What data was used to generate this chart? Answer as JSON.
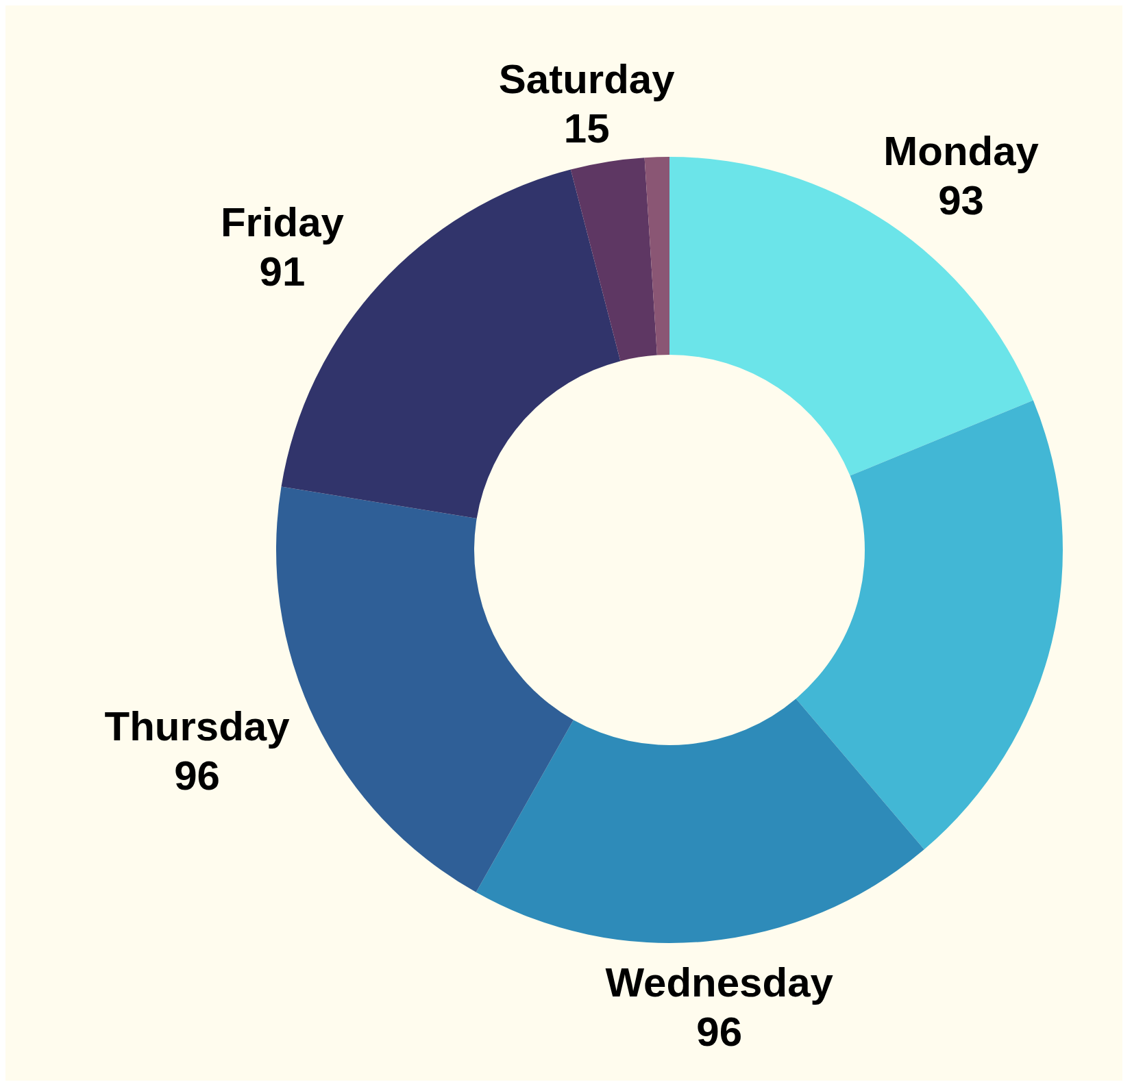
{
  "chart_data": {
    "type": "donut",
    "categories": [
      "Monday",
      null,
      "Wednesday",
      "Thursday",
      "Friday",
      "Saturday",
      null
    ],
    "values": [
      93,
      99,
      96,
      96,
      91,
      15,
      5
    ],
    "colors": [
      "#6be4e9",
      "#42b7d5",
      "#2e8bb9",
      "#2f5f97",
      "#31346b",
      "#5e3763",
      "#8a5674"
    ],
    "value_labels": [
      "93",
      null,
      "96",
      "96",
      "91",
      "15",
      null
    ]
  }
}
